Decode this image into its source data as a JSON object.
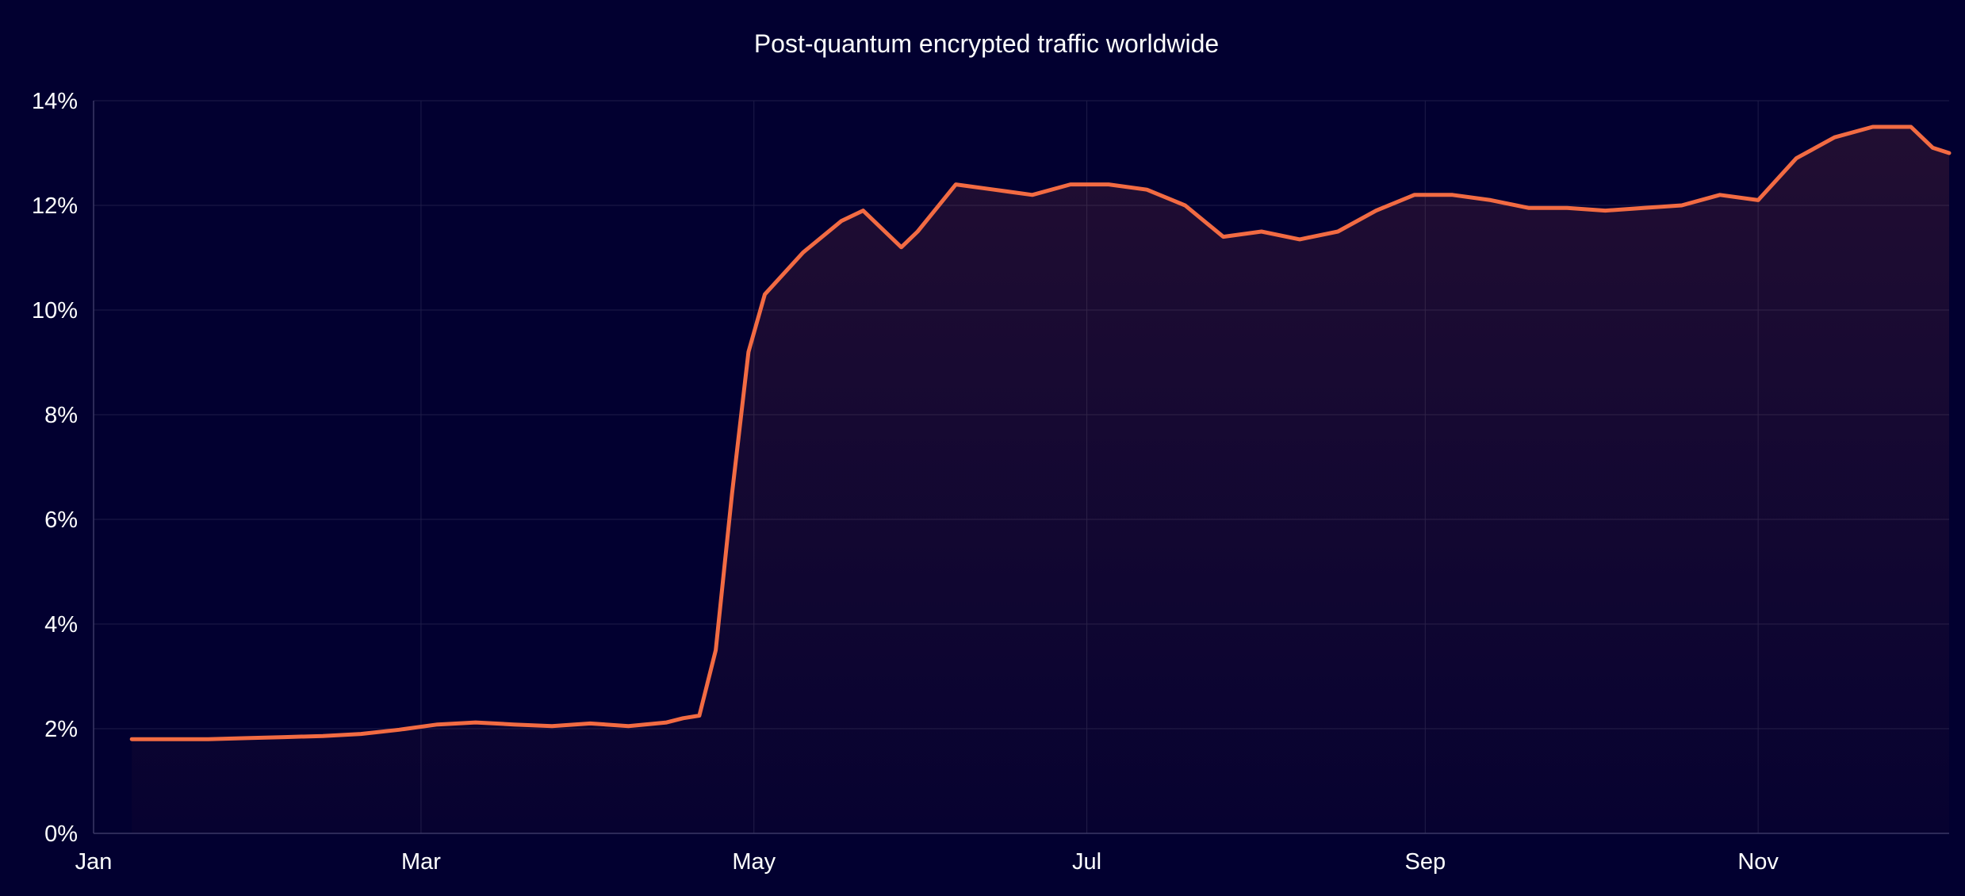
{
  "chart_data": {
    "type": "area",
    "title": "Post-quantum encrypted traffic worldwide",
    "xlabel": "",
    "ylabel": "",
    "x_ticks": [
      "Jan",
      "Mar",
      "May",
      "Jul",
      "Sep",
      "Nov"
    ],
    "y_ticks": [
      "0%",
      "2%",
      "4%",
      "6%",
      "8%",
      "10%",
      "12%",
      "14%"
    ],
    "ylim": [
      0,
      14
    ],
    "grid": true,
    "legend": "none",
    "colors": {
      "background": "#020030",
      "line": "#F26B43",
      "grid": "#1E1C48",
      "axis": "#3A3866"
    },
    "series": [
      {
        "x": [
          "2024-01-08",
          "2024-01-15",
          "2024-01-22",
          "2024-01-29",
          "2024-02-05",
          "2024-02-12",
          "2024-02-19",
          "2024-02-26",
          "2024-03-04",
          "2024-03-11",
          "2024-03-18",
          "2024-03-25",
          "2024-04-01",
          "2024-04-08",
          "2024-04-15",
          "2024-04-18",
          "2024-04-21",
          "2024-04-24",
          "2024-04-27",
          "2024-04-30",
          "2024-05-03",
          "2024-05-10",
          "2024-05-17",
          "2024-05-21",
          "2024-05-24",
          "2024-05-28",
          "2024-05-31",
          "2024-06-07",
          "2024-06-14",
          "2024-06-21",
          "2024-06-28",
          "2024-07-05",
          "2024-07-12",
          "2024-07-19",
          "2024-07-26",
          "2024-08-02",
          "2024-08-09",
          "2024-08-16",
          "2024-08-23",
          "2024-08-30",
          "2024-09-06",
          "2024-09-13",
          "2024-09-20",
          "2024-09-27",
          "2024-10-04",
          "2024-10-11",
          "2024-10-18",
          "2024-10-25",
          "2024-11-01",
          "2024-11-08",
          "2024-11-15",
          "2024-11-22",
          "2024-11-29",
          "2024-12-03",
          "2024-12-06"
        ],
        "values": [
          1.8,
          1.8,
          1.8,
          1.82,
          1.84,
          1.86,
          1.9,
          1.98,
          2.08,
          2.12,
          2.08,
          2.05,
          2.1,
          2.05,
          2.12,
          2.2,
          2.25,
          3.5,
          6.5,
          9.2,
          10.3,
          11.1,
          11.7,
          11.9,
          11.6,
          11.2,
          11.5,
          12.4,
          12.3,
          12.2,
          12.4,
          12.4,
          12.3,
          12.0,
          11.4,
          11.5,
          11.35,
          11.5,
          11.9,
          12.2,
          12.2,
          12.1,
          11.95,
          11.95,
          11.9,
          11.95,
          12.0,
          12.2,
          12.1,
          12.9,
          13.3,
          13.5,
          13.5,
          13.1,
          13.0
        ]
      }
    ]
  }
}
